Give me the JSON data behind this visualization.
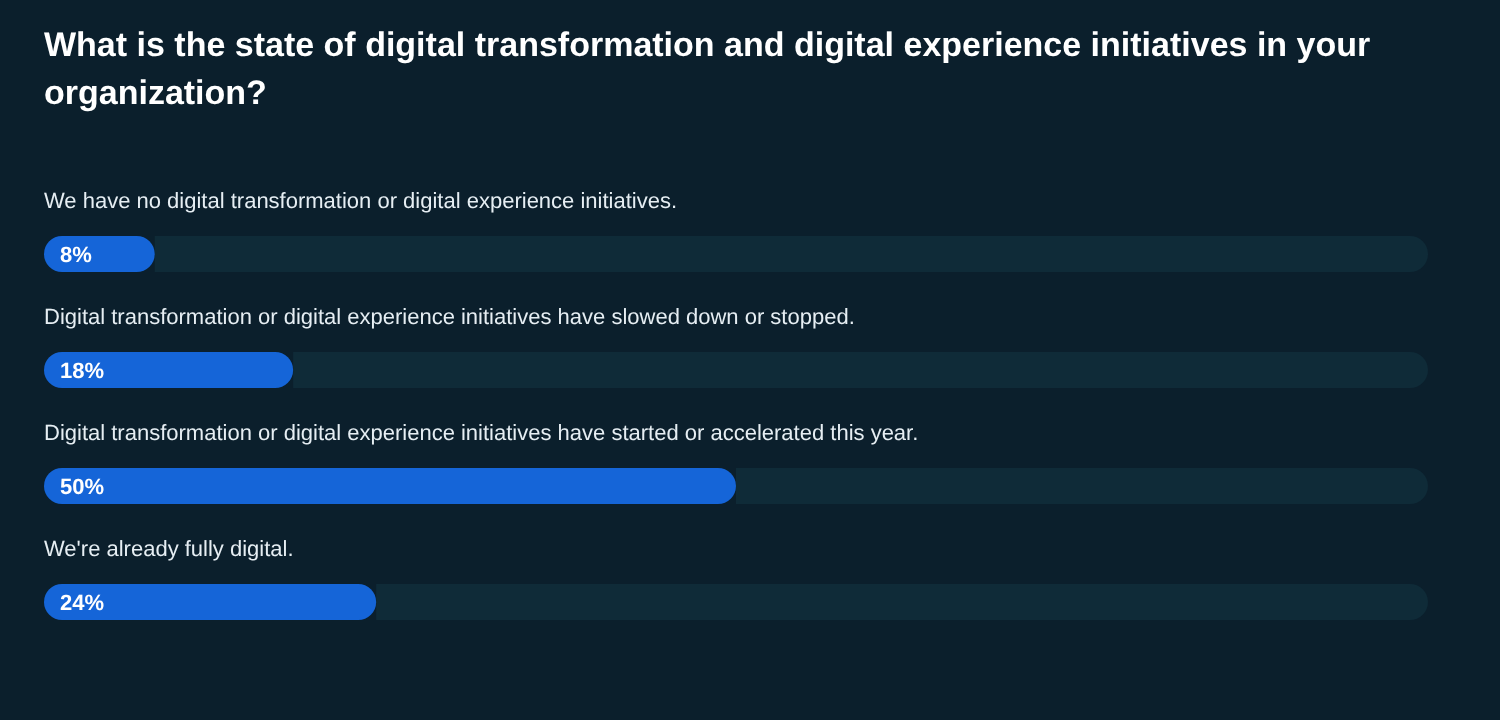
{
  "chart_data": {
    "type": "bar",
    "orientation": "horizontal",
    "title": "What is the state of digital transformation and digital experience initiatives in your organization?",
    "categories": [
      "We have no digital transformation or digital experience initiatives.",
      "Digital transformation or digital experience initiatives have slowed down or stopped.",
      "Digital transformation or digital experience initiatives have started or accelerated this year.",
      "We're already fully digital."
    ],
    "values": [
      8,
      18,
      50,
      24
    ],
    "value_labels": [
      "8%",
      "18%",
      "50%",
      "24%"
    ],
    "color": "#1565d8",
    "xlim": [
      0,
      100
    ]
  }
}
